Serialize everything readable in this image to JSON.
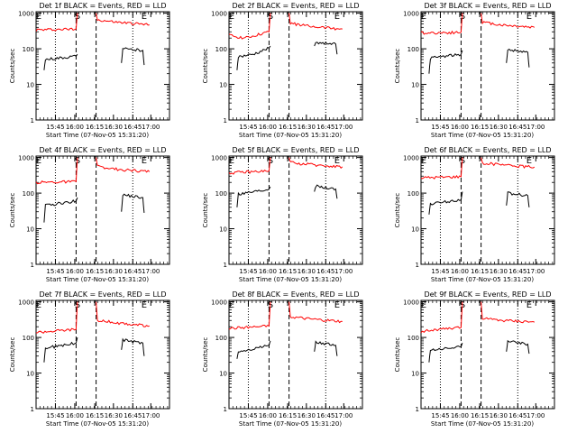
{
  "chart_data": [
    {
      "type": "line",
      "title": "Det 1f BLACK = Events, RED = LLD",
      "xlabel": "Start Time (07-Nov-05 15:31:20)",
      "ylabel": "Counts/sec",
      "xtick_labels": [
        "15:45",
        "16:00",
        "16:15",
        "16:30",
        "16:45",
        "17:00"
      ],
      "ytick_labels": [
        "1",
        "10",
        "100",
        "1000"
      ],
      "yscale": "log",
      "ylim": [
        1,
        1100
      ],
      "markers": [
        "E",
        "S",
        "E"
      ],
      "series": [
        {
          "color": "#ff0000",
          "segments": [
            {
              "x": [
                0,
                0.3,
                0.31
              ],
              "y": [
                340,
                360,
                1000
              ]
            },
            {
              "x": [
                0.45,
                0.46,
                0.6,
                0.85
              ],
              "y": [
                1000,
                650,
                560,
                470
              ]
            }
          ]
        },
        {
          "color": "#000000",
          "segments": [
            {
              "x": [
                0.06,
                0.07,
                0.3,
                0.31
              ],
              "y": [
                25,
                50,
                62,
                70
              ]
            },
            {
              "x": [
                0.64,
                0.65,
                0.8,
                0.81
              ],
              "y": [
                40,
                100,
                90,
                35
              ]
            }
          ]
        }
      ]
    },
    {
      "type": "line",
      "title": "Det 2f BLACK = Events, RED = LLD",
      "xlabel": "Start Time (07-Nov-05 15:31:20)",
      "ylabel": "Counts/sec",
      "xtick_labels": [
        "15:45",
        "16:00",
        "16:15",
        "16:30",
        "16:45",
        "17:00"
      ],
      "ytick_labels": [
        "1",
        "10",
        "100",
        "1000"
      ],
      "yscale": "log",
      "ylim": [
        1,
        1100
      ],
      "markers": [
        "E",
        "S",
        "E"
      ],
      "series": [
        {
          "color": "#ff0000",
          "segments": [
            {
              "x": [
                0,
                0.12,
                0.3,
                0.31
              ],
              "y": [
                240,
                200,
                300,
                1000
              ]
            },
            {
              "x": [
                0.45,
                0.46,
                0.6,
                0.85
              ],
              "y": [
                1000,
                520,
                430,
                360
              ]
            }
          ]
        },
        {
          "color": "#000000",
          "segments": [
            {
              "x": [
                0.06,
                0.07,
                0.18,
                0.3,
                0.31
              ],
              "y": [
                25,
                60,
                70,
                105,
                120
              ]
            },
            {
              "x": [
                0.64,
                0.65,
                0.8,
                0.81
              ],
              "y": [
                120,
                150,
                135,
                70
              ]
            }
          ]
        }
      ]
    },
    {
      "type": "line",
      "title": "Det 3f BLACK = Events, RED = LLD",
      "xlabel": "Start Time (07-Nov-05 15:31:20)",
      "ylabel": "Counts/sec",
      "xtick_labels": [
        "15:45",
        "16:00",
        "16:15",
        "16:30",
        "16:45",
        "17:00"
      ],
      "ytick_labels": [
        "1",
        "10",
        "100",
        "1000"
      ],
      "yscale": "log",
      "ylim": [
        1,
        1100
      ],
      "markers": [
        "E",
        "S",
        "E"
      ],
      "series": [
        {
          "color": "#ff0000",
          "segments": [
            {
              "x": [
                0,
                0.3,
                0.31
              ],
              "y": [
                280,
                290,
                1000
              ]
            },
            {
              "x": [
                0.45,
                0.46,
                0.6,
                0.85
              ],
              "y": [
                1000,
                560,
                470,
                400
              ]
            }
          ]
        },
        {
          "color": "#000000",
          "segments": [
            {
              "x": [
                0.06,
                0.07,
                0.3,
                0.31
              ],
              "y": [
                20,
                55,
                70,
                90
              ]
            },
            {
              "x": [
                0.64,
                0.65,
                0.8,
                0.81
              ],
              "y": [
                40,
                95,
                80,
                30
              ]
            }
          ]
        }
      ]
    },
    {
      "type": "line",
      "title": "Det 4f BLACK = Events, RED = LLD",
      "xlabel": "Start Time (07-Nov-05 15:31:20)",
      "ylabel": "Counts/sec",
      "xtick_labels": [
        "15:45",
        "16:00",
        "16:15",
        "16:30",
        "16:45",
        "17:00"
      ],
      "ytick_labels": [
        "1",
        "10",
        "100",
        "1000"
      ],
      "yscale": "log",
      "ylim": [
        1,
        1100
      ],
      "markers": [
        "E",
        "S",
        "E"
      ],
      "series": [
        {
          "color": "#ff0000",
          "segments": [
            {
              "x": [
                0,
                0.3,
                0.31
              ],
              "y": [
                200,
                210,
                1000
              ]
            },
            {
              "x": [
                0.45,
                0.46,
                0.6,
                0.85
              ],
              "y": [
                1000,
                560,
                470,
                400
              ]
            }
          ]
        },
        {
          "color": "#000000",
          "segments": [
            {
              "x": [
                0.06,
                0.07,
                0.3,
                0.31
              ],
              "y": [
                15,
                45,
                60,
                75
              ]
            },
            {
              "x": [
                0.64,
                0.65,
                0.8,
                0.81
              ],
              "y": [
                30,
                90,
                75,
                28
              ]
            }
          ]
        }
      ]
    },
    {
      "type": "line",
      "title": "Det 5f BLACK = Events, RED = LLD",
      "xlabel": "Start Time (07-Nov-05 15:31:20)",
      "ylabel": "Counts/sec",
      "xtick_labels": [
        "15:45",
        "16:00",
        "16:15",
        "16:30",
        "16:45",
        "17:00"
      ],
      "ytick_labels": [
        "1",
        "10",
        "100",
        "1000"
      ],
      "yscale": "log",
      "ylim": [
        1,
        1100
      ],
      "markers": [
        "E",
        "S",
        "E"
      ],
      "series": [
        {
          "color": "#ff0000",
          "segments": [
            {
              "x": [
                0,
                0.3,
                0.31
              ],
              "y": [
                370,
                420,
                1000
              ]
            },
            {
              "x": [
                0.45,
                0.46,
                0.6,
                0.85
              ],
              "y": [
                1000,
                720,
                640,
                550
              ]
            }
          ]
        },
        {
          "color": "#000000",
          "segments": [
            {
              "x": [
                0.06,
                0.07,
                0.3,
                0.31
              ],
              "y": [
                40,
                95,
                130,
                150
              ]
            },
            {
              "x": [
                0.64,
                0.65,
                0.8,
                0.81
              ],
              "y": [
                110,
                160,
                130,
                70
              ]
            }
          ]
        }
      ]
    },
    {
      "type": "line",
      "title": "Det 6f BLACK = Events, RED = LLD",
      "xlabel": "Start Time (07-Nov-05 15:31:20)",
      "ylabel": "Counts/sec",
      "xtick_labels": [
        "15:45",
        "16:00",
        "16:15",
        "16:30",
        "16:45",
        "17:00"
      ],
      "ytick_labels": [
        "1",
        "10",
        "100",
        "1000"
      ],
      "yscale": "log",
      "ylim": [
        1,
        1100
      ],
      "markers": [
        "E",
        "S",
        "E"
      ],
      "series": [
        {
          "color": "#ff0000",
          "segments": [
            {
              "x": [
                0,
                0.3,
                0.31
              ],
              "y": [
                270,
                290,
                1000
              ]
            },
            {
              "x": [
                0.45,
                0.46,
                0.6,
                0.85
              ],
              "y": [
                1000,
                700,
                620,
                540
              ]
            }
          ]
        },
        {
          "color": "#000000",
          "segments": [
            {
              "x": [
                0.06,
                0.07,
                0.3,
                0.31
              ],
              "y": [
                25,
                50,
                65,
                110
              ]
            },
            {
              "x": [
                0.64,
                0.65,
                0.8,
                0.81
              ],
              "y": [
                45,
                100,
                85,
                40
              ]
            }
          ]
        }
      ]
    },
    {
      "type": "line",
      "title": "Det 7f BLACK = Events, RED = LLD",
      "xlabel": "Start Time (07-Nov-05 15:31:20)",
      "ylabel": "Counts/sec",
      "xtick_labels": [
        "15:45",
        "16:00",
        "16:15",
        "16:30",
        "16:45",
        "17:00"
      ],
      "ytick_labels": [
        "1",
        "10",
        "100",
        "1000"
      ],
      "yscale": "log",
      "ylim": [
        1,
        1100
      ],
      "markers": [
        "E",
        "S",
        "E"
      ],
      "series": [
        {
          "color": "#ff0000",
          "segments": [
            {
              "x": [
                0,
                0.3,
                0.31
              ],
              "y": [
                140,
                170,
                1000
              ]
            },
            {
              "x": [
                0.45,
                0.46,
                0.6,
                0.85
              ],
              "y": [
                1000,
                300,
                260,
                210
              ]
            }
          ]
        },
        {
          "color": "#000000",
          "segments": [
            {
              "x": [
                0.06,
                0.07,
                0.3,
                0.31
              ],
              "y": [
                20,
                50,
                70,
                100
              ]
            },
            {
              "x": [
                0.64,
                0.65,
                0.8,
                0.81
              ],
              "y": [
                45,
                85,
                70,
                30
              ]
            }
          ]
        }
      ]
    },
    {
      "type": "line",
      "title": "Det 8f BLACK = Events, RED = LLD",
      "xlabel": "Start Time (07-Nov-05 15:31:20)",
      "ylabel": "Counts/sec",
      "xtick_labels": [
        "15:45",
        "16:00",
        "16:15",
        "16:30",
        "16:45",
        "17:00"
      ],
      "ytick_labels": [
        "1",
        "10",
        "100",
        "1000"
      ],
      "yscale": "log",
      "ylim": [
        1,
        1100
      ],
      "markers": [
        "E",
        "S",
        "E"
      ],
      "series": [
        {
          "color": "#ff0000",
          "segments": [
            {
              "x": [
                0,
                0.3,
                0.31
              ],
              "y": [
                180,
                210,
                1000
              ]
            },
            {
              "x": [
                0.45,
                0.46,
                0.6,
                0.85
              ],
              "y": [
                1000,
                380,
                330,
                280
              ]
            }
          ]
        },
        {
          "color": "#000000",
          "segments": [
            {
              "x": [
                0.06,
                0.07,
                0.3,
                0.31
              ],
              "y": [
                25,
                40,
                60,
                80
              ]
            },
            {
              "x": [
                0.64,
                0.65,
                0.8,
                0.81
              ],
              "y": [
                40,
                75,
                60,
                30
              ]
            }
          ]
        }
      ]
    },
    {
      "type": "line",
      "title": "Det 9f BLACK = Events, RED = LLD",
      "xlabel": "Start Time (07-Nov-05 15:31:20)",
      "ylabel": "Counts/sec",
      "xtick_labels": [
        "15:45",
        "16:00",
        "16:15",
        "16:30",
        "16:45",
        "17:00"
      ],
      "ytick_labels": [
        "1",
        "10",
        "100",
        "1000"
      ],
      "yscale": "log",
      "ylim": [
        1,
        1100
      ],
      "markers": [
        "E",
        "S",
        "E"
      ],
      "series": [
        {
          "color": "#ff0000",
          "segments": [
            {
              "x": [
                0,
                0.3,
                0.31
              ],
              "y": [
                150,
                190,
                1000
              ]
            },
            {
              "x": [
                0.45,
                0.46,
                0.6,
                0.85
              ],
              "y": [
                1000,
                340,
                300,
                270
              ]
            }
          ]
        },
        {
          "color": "#000000",
          "segments": [
            {
              "x": [
                0.06,
                0.07,
                0.3,
                0.31
              ],
              "y": [
                20,
                45,
                55,
                70
              ]
            },
            {
              "x": [
                0.64,
                0.65,
                0.8,
                0.81
              ],
              "y": [
                40,
                80,
                65,
                35
              ]
            }
          ]
        }
      ]
    }
  ]
}
